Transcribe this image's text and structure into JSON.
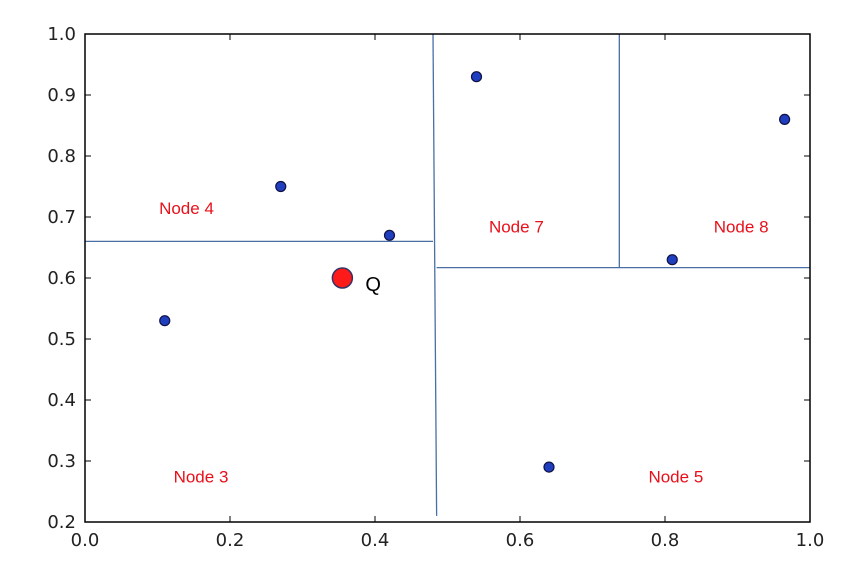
{
  "chart_data": {
    "type": "scatter",
    "title": "",
    "xlabel": "",
    "ylabel": "",
    "xlim": [
      0.0,
      1.0
    ],
    "ylim": [
      0.2,
      1.0
    ],
    "x_ticks": [
      {
        "value": 0.0,
        "label": "0.0"
      },
      {
        "value": 0.2,
        "label": "0.2"
      },
      {
        "value": 0.4,
        "label": "0.4"
      },
      {
        "value": 0.6,
        "label": "0.6"
      },
      {
        "value": 0.8,
        "label": "0.8"
      },
      {
        "value": 1.0,
        "label": "1.0"
      }
    ],
    "y_ticks": [
      {
        "value": 0.2,
        "label": "0.2"
      },
      {
        "value": 0.3,
        "label": "0.3"
      },
      {
        "value": 0.4,
        "label": "0.4"
      },
      {
        "value": 0.5,
        "label": "0.5"
      },
      {
        "value": 0.6,
        "label": "0.6"
      },
      {
        "value": 0.7,
        "label": "0.7"
      },
      {
        "value": 0.8,
        "label": "0.8"
      },
      {
        "value": 0.9,
        "label": "0.9"
      },
      {
        "value": 1.0,
        "label": "1.0"
      }
    ],
    "grid": false,
    "points": [
      {
        "x": 0.11,
        "y": 0.53
      },
      {
        "x": 0.27,
        "y": 0.75
      },
      {
        "x": 0.42,
        "y": 0.67
      },
      {
        "x": 0.54,
        "y": 0.93
      },
      {
        "x": 0.64,
        "y": 0.29
      },
      {
        "x": 0.81,
        "y": 0.63
      },
      {
        "x": 0.965,
        "y": 0.86
      }
    ],
    "query_point": {
      "x": 0.355,
      "y": 0.6,
      "label": "Q"
    },
    "split_lines": [
      {
        "x1": 0.48,
        "y1": 1.0,
        "x2": 0.485,
        "y2": 0.21
      },
      {
        "x1": 0.0,
        "y1": 0.66,
        "x2": 0.48,
        "y2": 0.66
      },
      {
        "x1": 0.485,
        "y1": 0.617,
        "x2": 1.0,
        "y2": 0.617
      },
      {
        "x1": 0.737,
        "y1": 1.0,
        "x2": 0.737,
        "y2": 0.617
      }
    ],
    "region_labels": [
      {
        "text": "Node 4",
        "x": 0.14,
        "y": 0.705
      },
      {
        "text": "Node 7",
        "x": 0.595,
        "y": 0.675
      },
      {
        "text": "Node 8",
        "x": 0.905,
        "y": 0.675
      },
      {
        "text": "Node 3",
        "x": 0.16,
        "y": 0.265
      },
      {
        "text": "Node 5",
        "x": 0.815,
        "y": 0.265
      }
    ],
    "colors": {
      "point_fill": "#1f3fbf",
      "point_edge": "#111144",
      "query_fill": "#ff1a1a",
      "query_edge": "#333366",
      "split_line": "#4a6fa5",
      "region_label": "#e8101a",
      "axes": "#000000"
    }
  }
}
